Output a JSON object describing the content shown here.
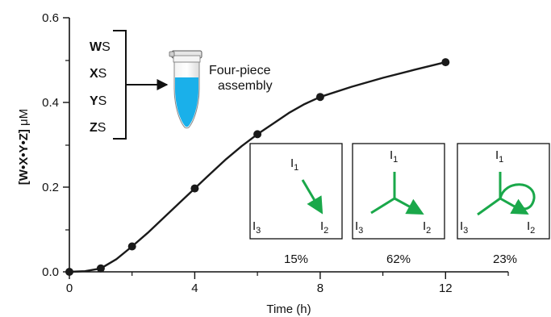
{
  "chart_data": {
    "type": "line",
    "xlabel": "Time (h)",
    "ylabel": {
      "species": "[W•X•Y•Z]",
      "unit": " μM"
    },
    "xlim": [
      0,
      14
    ],
    "ylim": [
      0,
      0.6
    ],
    "x_ticks": [
      "0",
      "4",
      "8",
      "12"
    ],
    "y_ticks": [
      "0.0",
      "0.2",
      "0.4",
      "0.6"
    ],
    "grid": false,
    "points": [
      {
        "x": 0,
        "y": 0.0
      },
      {
        "x": 1,
        "y": 0.008
      },
      {
        "x": 2,
        "y": 0.06
      },
      {
        "x": 4,
        "y": 0.197
      },
      {
        "x": 6,
        "y": 0.325
      },
      {
        "x": 8,
        "y": 0.413
      },
      {
        "x": 12,
        "y": 0.495
      }
    ],
    "curve": [
      [
        0,
        0.0
      ],
      [
        0.5,
        0.0015
      ],
      [
        1,
        0.008
      ],
      [
        1.5,
        0.03
      ],
      [
        2,
        0.06
      ],
      [
        2.5,
        0.092
      ],
      [
        3,
        0.127
      ],
      [
        3.5,
        0.162
      ],
      [
        4,
        0.197
      ],
      [
        4.5,
        0.232
      ],
      [
        5,
        0.266
      ],
      [
        5.5,
        0.297
      ],
      [
        6,
        0.325
      ],
      [
        6.5,
        0.35
      ],
      [
        7,
        0.375
      ],
      [
        7.5,
        0.396
      ],
      [
        8,
        0.413
      ],
      [
        9,
        0.437
      ],
      [
        10,
        0.458
      ],
      [
        11,
        0.477
      ],
      [
        12,
        0.495
      ]
    ]
  },
  "assembly": {
    "pieces": [
      {
        "letter": "W",
        "suffix": "S"
      },
      {
        "letter": "X",
        "suffix": "S"
      },
      {
        "letter": "Y",
        "suffix": "S"
      },
      {
        "letter": "Z",
        "suffix": "S"
      }
    ],
    "label_line1": "Four-piece",
    "label_line2": "assembly",
    "tube_color": "#1ab0ea"
  },
  "pathways": [
    {
      "percent": "15%"
    },
    {
      "percent": "62%"
    },
    {
      "percent": "23%"
    }
  ],
  "node_labels": {
    "letter": "I",
    "sub1": "1",
    "sub2": "2",
    "sub3": "3"
  },
  "colors": {
    "arrow": "#1aa84a",
    "line": "#1a1a1a"
  }
}
